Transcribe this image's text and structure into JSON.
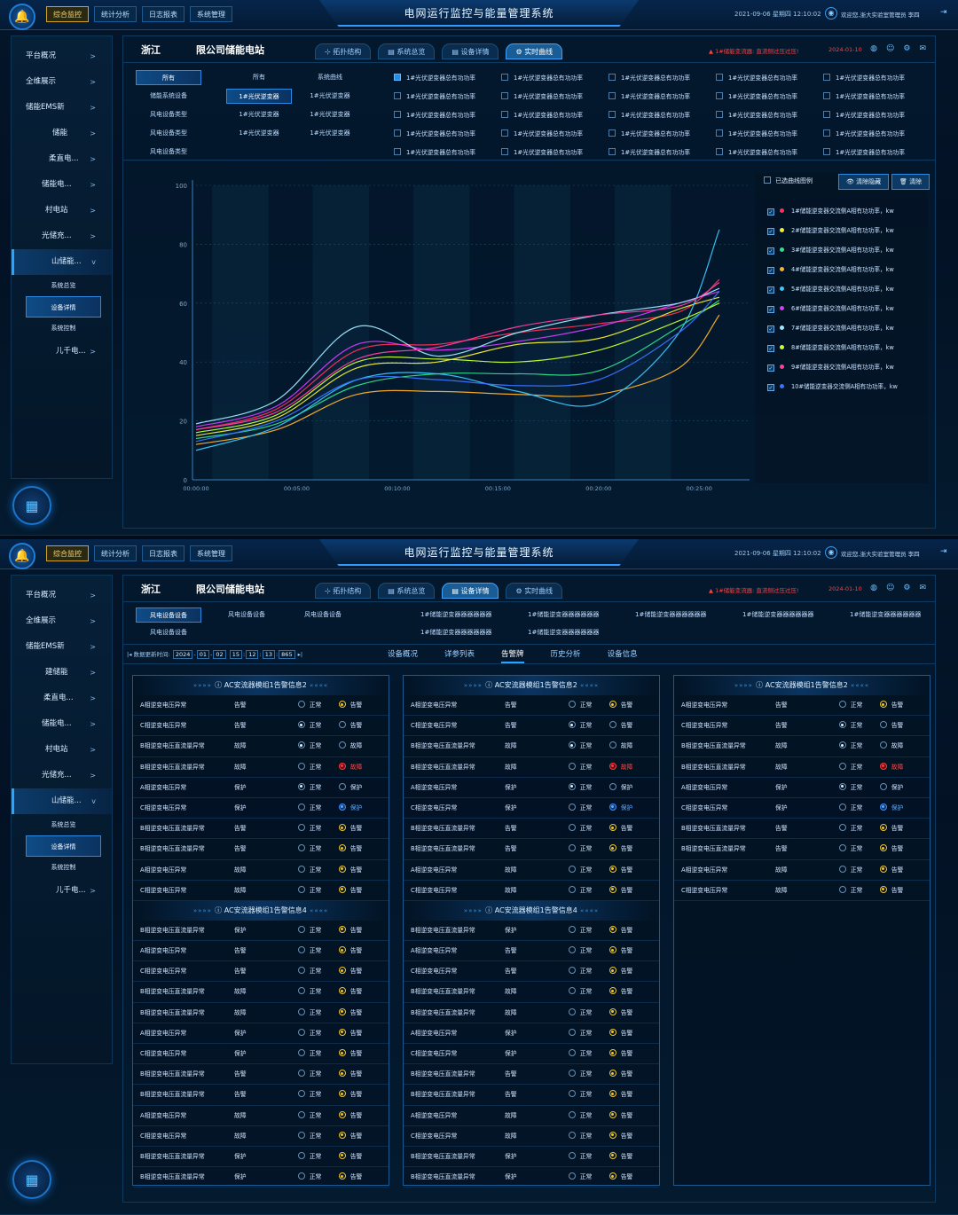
{
  "app": {
    "title": "电网运行监控与能量管理系统",
    "datetime": "2021-09-06 星期四 12:10:02",
    "user": "欢迎您,浙大实验室管理员 李四",
    "nav": [
      "综合监控",
      "统计分析",
      "日志报表",
      "系统管理"
    ]
  },
  "sidebar": {
    "items": [
      "平台概况",
      "全维展示",
      "储能EMS新",
      "储能",
      "柔直电...",
      "储能电...",
      "村电站",
      "光储充...",
      "山储能..."
    ],
    "sub": [
      "系统总览",
      "设备详情",
      "系统控制"
    ],
    "last": "儿千电..."
  },
  "sidebar2": {
    "items": [
      "平台概况",
      "全维展示",
      "储能EMS新",
      "建储能",
      "柔直电...",
      "储能电...",
      "村电站",
      "光储充...",
      "山储能..."
    ]
  },
  "station": {
    "region": "浙江",
    "name": "限公司储能电站",
    "alarm": "1#储能变流器: 直流侧过压过压!",
    "alarm_date": "2024-01-10"
  },
  "tabs": [
    "拓扑结构",
    "系统总览",
    "设备详情",
    "实时曲线"
  ],
  "filter": {
    "col1": [
      "所有",
      "储能系统设备",
      "风电设备类型",
      "风电设备类型",
      "风电设备类型"
    ],
    "col2": [
      "所有",
      "1#光伏逆变器",
      "1#光伏逆变器",
      "1#光伏逆变器"
    ],
    "col3": [
      "系统曲线",
      "1#光伏逆变器",
      "1#光伏逆变器",
      "1#光伏逆变器"
    ],
    "check_label": "1#光伏逆变器总有功功率"
  },
  "legend": {
    "select_label": "已选曲线图例",
    "hide_btn": "清除隐藏",
    "clear_btn": "清除",
    "items": [
      "1#储能逆变器交流侧A相有功功率，kw",
      "2#储能逆变器交流侧A相有功功率，kw",
      "3#储能逆变器交流侧A相有功功率，kw",
      "4#储能逆变器交流侧A相有功功率，kw",
      "5#储能逆变器交流侧A相有功功率，kw",
      "6#储能逆变器交流侧A相有功功率，kw",
      "7#储能逆变器交流侧A相有功功率，kw",
      "8#储能逆变器交流侧A相有功功率，kw",
      "9#储能逆变器交流侧A相有功功率，kw",
      "10#储能逆变器交流侧A相有功功率，kw"
    ],
    "colors": [
      "#ff2e5b",
      "#f3ee2c",
      "#2ee08a",
      "#ffb02a",
      "#39c8ff",
      "#d43cff",
      "#9de8ff",
      "#c8ff2e",
      "#ff3ea0",
      "#3a72ff"
    ]
  },
  "chart_data": {
    "type": "line",
    "x": [
      "00:00:00",
      "00:05:00",
      "00:10:00",
      "00:15:00",
      "00:20:00",
      "00:25:00"
    ],
    "ylim": [
      0,
      100
    ],
    "yticks": [
      "100",
      "80",
      "60",
      "40",
      "20",
      "0"
    ],
    "series": [
      {
        "name": "1#储能逆变器交流侧A相有功功率，kw",
        "color": "#ff2e5b",
        "values": [
          [
            0,
            17
          ],
          [
            4,
            24
          ],
          [
            8,
            44
          ],
          [
            12,
            46
          ],
          [
            16,
            50
          ],
          [
            20,
            53
          ],
          [
            24,
            57
          ],
          [
            26,
            68
          ]
        ]
      },
      {
        "name": "2#储能逆变器交流侧A相有功功率，kw",
        "color": "#f3ee2c",
        "values": [
          [
            0,
            15
          ],
          [
            4,
            21
          ],
          [
            8,
            38
          ],
          [
            12,
            40
          ],
          [
            16,
            46
          ],
          [
            20,
            48
          ],
          [
            24,
            58
          ],
          [
            26,
            62
          ]
        ]
      },
      {
        "name": "3#储能逆变器交流侧A相有功功率，kw",
        "color": "#2ee08a",
        "values": [
          [
            0,
            14
          ],
          [
            4,
            19
          ],
          [
            8,
            32
          ],
          [
            12,
            36
          ],
          [
            16,
            36
          ],
          [
            20,
            37
          ],
          [
            24,
            52
          ],
          [
            26,
            61
          ]
        ]
      },
      {
        "name": "4#储能逆变器交流侧A相有功功率，kw",
        "color": "#ffb02a",
        "values": [
          [
            0,
            12
          ],
          [
            4,
            17
          ],
          [
            8,
            29
          ],
          [
            12,
            30
          ],
          [
            16,
            29
          ],
          [
            20,
            29
          ],
          [
            24,
            38
          ],
          [
            26,
            56
          ]
        ]
      },
      {
        "name": "5#储能逆变器交流侧A相有功功率，kw",
        "color": "#39c8ff",
        "values": [
          [
            0,
            10
          ],
          [
            4,
            18
          ],
          [
            8,
            34
          ],
          [
            12,
            36
          ],
          [
            16,
            30
          ],
          [
            20,
            26
          ],
          [
            24,
            50
          ],
          [
            26,
            85
          ]
        ]
      },
      {
        "name": "6#储能逆变器交流侧A相有功功率，kw",
        "color": "#d43cff",
        "values": [
          [
            0,
            18
          ],
          [
            4,
            25
          ],
          [
            8,
            46
          ],
          [
            12,
            44
          ],
          [
            16,
            47
          ],
          [
            20,
            52
          ],
          [
            24,
            60
          ],
          [
            26,
            64
          ]
        ]
      },
      {
        "name": "7#储能逆变器交流侧A相有功功率，kw",
        "color": "#9de8ff",
        "values": [
          [
            0,
            19
          ],
          [
            4,
            27
          ],
          [
            8,
            52
          ],
          [
            12,
            42
          ],
          [
            16,
            50
          ],
          [
            20,
            56
          ],
          [
            24,
            60
          ],
          [
            26,
            65
          ]
        ]
      },
      {
        "name": "8#储能逆变器交流侧A相有功功率，kw",
        "color": "#c8ff2e",
        "values": [
          [
            0,
            16
          ],
          [
            4,
            22
          ],
          [
            8,
            40
          ],
          [
            12,
            41
          ],
          [
            16,
            40
          ],
          [
            20,
            44
          ],
          [
            24,
            54
          ],
          [
            26,
            60
          ]
        ]
      },
      {
        "name": "9#储能逆变器交流侧A相有功功率，kw",
        "color": "#ff3ea0",
        "values": [
          [
            0,
            17
          ],
          [
            4,
            23
          ],
          [
            8,
            41
          ],
          [
            12,
            45
          ],
          [
            16,
            52
          ],
          [
            20,
            56
          ],
          [
            24,
            59
          ],
          [
            26,
            67
          ]
        ]
      },
      {
        "name": "10#储能逆变器交流侧A相有功功率，kw",
        "color": "#3a72ff",
        "values": [
          [
            0,
            13
          ],
          [
            4,
            20
          ],
          [
            8,
            34
          ],
          [
            12,
            34
          ],
          [
            16,
            32
          ],
          [
            20,
            34
          ],
          [
            24,
            50
          ],
          [
            26,
            64
          ]
        ]
      }
    ]
  },
  "s2": {
    "filter": {
      "col1": [
        "风电设备设备",
        "风电设备设备"
      ],
      "col2": [
        "风电设备设备"
      ],
      "col3": [
        "风电设备设备"
      ],
      "items": [
        "1#储能逆变器器器器器器",
        "1#储能逆变器器器器器器",
        "1#储能逆变器器器器器器",
        "1#储能逆变器器器器器器",
        "1#储能逆变器器器器器器",
        "1#储能逆变器器器器器器",
        "1#储能逆变器器器器器器"
      ]
    },
    "update_label": "数据更新时间:",
    "update_time": [
      "2024",
      "01",
      "02",
      "15",
      "12",
      "13",
      "865"
    ],
    "subtabs": [
      "设备概况",
      "详参列表",
      "告警牌",
      "历史分析",
      "设备信息"
    ],
    "panel_title_a": "AC安流器模组1告警信息2",
    "panel_title_b": "AC安流器模组1告警信息4",
    "opt_normal": "正常",
    "rows_a": [
      [
        "A相逆变电压异常",
        "告警",
        "n",
        "告警",
        "y"
      ],
      [
        "C相逆变电压异常",
        "告警",
        "b",
        "告警",
        "n"
      ],
      [
        "B相逆变电压直流量异常",
        "故障",
        "b",
        "故障",
        "n"
      ],
      [
        "B相逆变电压直流量异常",
        "故障",
        "n",
        "故障",
        "r"
      ],
      [
        "A相逆变电压异常",
        "保护",
        "b",
        "保护",
        "n"
      ],
      [
        "C相逆变电压异常",
        "保护",
        "n",
        "保护",
        "bf"
      ],
      [
        "B相逆变电压直流量异常",
        "告警",
        "n",
        "告警",
        "y"
      ],
      [
        "B相逆变电压直流量异常",
        "告警",
        "n",
        "告警",
        "y"
      ],
      [
        "A相逆变电压异常",
        "故障",
        "n",
        "告警",
        "y"
      ],
      [
        "C相逆变电压异常",
        "故障",
        "n",
        "告警",
        "y"
      ]
    ],
    "rows_b": [
      [
        "B相逆变电压直流量异常",
        "保护",
        "n",
        "告警",
        "y"
      ],
      [
        "A相逆变电压异常",
        "告警",
        "n",
        "告警",
        "y"
      ],
      [
        "C相逆变电压异常",
        "告警",
        "n",
        "告警",
        "y"
      ],
      [
        "B相逆变电压直流量异常",
        "故障",
        "n",
        "告警",
        "y"
      ],
      [
        "B相逆变电压直流量异常",
        "故障",
        "n",
        "告警",
        "y"
      ],
      [
        "A相逆变电压异常",
        "保护",
        "n",
        "告警",
        "y"
      ],
      [
        "C相逆变电压异常",
        "保护",
        "n",
        "告警",
        "y"
      ],
      [
        "B相逆变电压直流量异常",
        "告警",
        "n",
        "告警",
        "y"
      ],
      [
        "B相逆变电压直流量异常",
        "告警",
        "n",
        "告警",
        "y"
      ],
      [
        "A相逆变电压异常",
        "故障",
        "n",
        "告警",
        "y"
      ],
      [
        "C相逆变电压异常",
        "故障",
        "n",
        "告警",
        "y"
      ],
      [
        "B相逆变电压直流量异常",
        "保护",
        "n",
        "告警",
        "y"
      ],
      [
        "B相逆变电压直流量异常",
        "保护",
        "n",
        "告警",
        "y"
      ]
    ]
  }
}
